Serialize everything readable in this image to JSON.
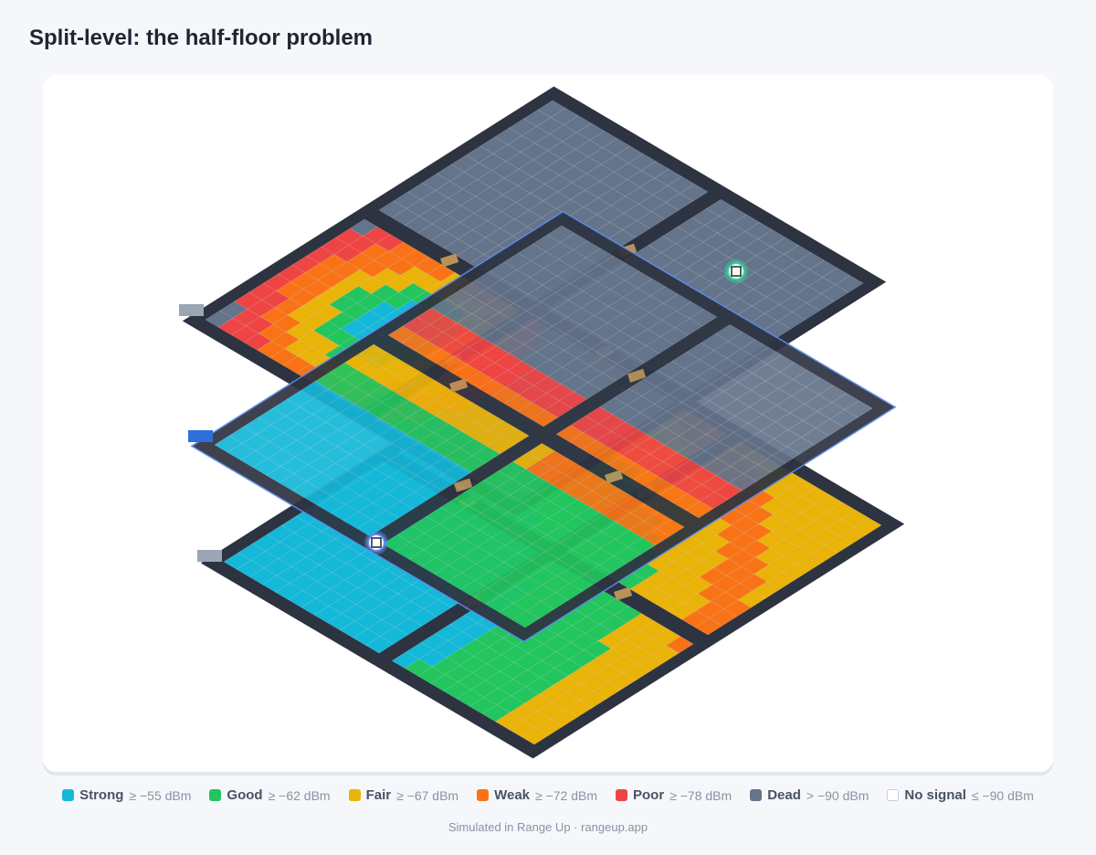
{
  "title": "Split-level: the half-floor problem",
  "legend": [
    {
      "name": "Strong",
      "threshold": "≥ −55 dBm",
      "color": "#14b8d9"
    },
    {
      "name": "Good",
      "threshold": "≥ −62 dBm",
      "color": "#22c55e"
    },
    {
      "name": "Fair",
      "threshold": "≥ −67 dBm",
      "color": "#eab308"
    },
    {
      "name": "Weak",
      "threshold": "≥ −72 dBm",
      "color": "#f97316"
    },
    {
      "name": "Poor",
      "threshold": "≥ −78 dBm",
      "color": "#ef4444"
    },
    {
      "name": "Dead",
      "threshold": "> −90 dBm",
      "color": "#64748b"
    },
    {
      "name": "No signal",
      "threshold": "≤ −90 dBm",
      "color": "#ffffff"
    }
  ],
  "footer": "Simulated in Range Up · rangeup.app"
}
